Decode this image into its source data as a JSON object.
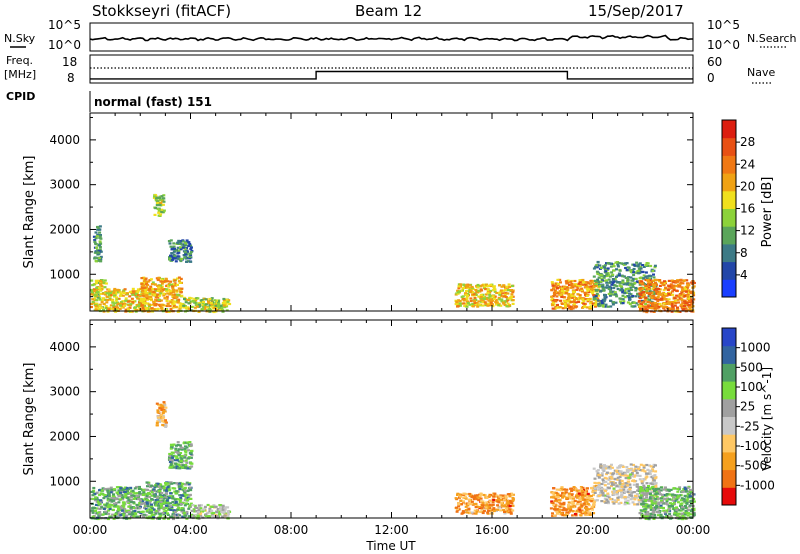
{
  "header": {
    "station": "Stokkseyri (fitACF)",
    "beam": "Beam 12",
    "date": "15/Sep/2017"
  },
  "panel_labels": {
    "nsky": "N.Sky",
    "nsearch": "N.Search",
    "freq": "Freq.",
    "freq_unit": "[MHz]",
    "nave": "Nave",
    "cpid": "CPID",
    "cpid_value": "normal (fast) 151"
  },
  "colors": {
    "power_scale": [
      "#1a3fff",
      "#2246a8",
      "#3c7a86",
      "#5aa55a",
      "#8cd23a",
      "#f0e01e",
      "#f0a214",
      "#f07814",
      "#e85014",
      "#dc1e10"
    ],
    "velocity_scale": [
      "#e60a0a",
      "#f07314",
      "#f5a01e",
      "#ffc864",
      "#c8c8c8",
      "#a0a0a0",
      "#78dc3c",
      "#50a064",
      "#3264a0",
      "#2846c8"
    ]
  },
  "chart_data": [
    {
      "type": "line",
      "panel": "noise",
      "series": [
        {
          "name": "N.Sky",
          "style": "solid"
        },
        {
          "name": "N.Search",
          "style": "dotted"
        }
      ],
      "left_ticks": [
        "10^5",
        "10^0"
      ],
      "right_ticks": [
        "10^5",
        "10^0"
      ]
    },
    {
      "type": "line",
      "panel": "frequency",
      "series": [
        {
          "name": "Freq. [MHz]",
          "style": "solid",
          "x": [
            0,
            9,
            9,
            19,
            19,
            24
          ],
          "y": [
            8.6,
            8.6,
            11.5,
            11.5,
            8.6,
            8.6
          ]
        },
        {
          "name": "Nave",
          "style": "dotted"
        }
      ],
      "left_ticks": [
        "18",
        "8"
      ],
      "right_ticks": [
        "60",
        "0"
      ]
    },
    {
      "type": "heatmap",
      "panel": "power",
      "ylabel": "Slant Range [km]",
      "yticks": [
        "1000",
        "2000",
        "3000",
        "4000"
      ],
      "ylim": [
        180,
        4600
      ],
      "colorbar_label": "Power [dB]",
      "colorbar_ticks": [
        "4",
        "8",
        "12",
        "16",
        "20",
        "24",
        "28"
      ],
      "regions": [
        {
          "t": [
            0.0,
            0.6
          ],
          "r": [
            180,
            900
          ],
          "level": 0.55
        },
        {
          "t": [
            0.6,
            2.2
          ],
          "r": [
            180,
            700
          ],
          "level": 0.6
        },
        {
          "t": [
            2.0,
            3.6
          ],
          "r": [
            180,
            950
          ],
          "level": 0.65
        },
        {
          "t": [
            3.6,
            5.5
          ],
          "r": [
            180,
            500
          ],
          "level": 0.5
        },
        {
          "t": [
            0.1,
            0.4
          ],
          "r": [
            1300,
            2100
          ],
          "level": 0.3
        },
        {
          "t": [
            2.5,
            2.9
          ],
          "r": [
            2300,
            2800
          ],
          "level": 0.45
        },
        {
          "t": [
            3.1,
            4.0
          ],
          "r": [
            1300,
            1800
          ],
          "level": 0.25
        },
        {
          "t": [
            14.5,
            16.8
          ],
          "r": [
            300,
            800
          ],
          "level": 0.6
        },
        {
          "t": [
            18.3,
            20.2
          ],
          "r": [
            250,
            900
          ],
          "level": 0.7
        },
        {
          "t": [
            20.0,
            22.5
          ],
          "r": [
            300,
            1300
          ],
          "level": 0.3
        },
        {
          "t": [
            21.8,
            24.0
          ],
          "r": [
            180,
            900
          ],
          "level": 0.75
        }
      ]
    },
    {
      "type": "heatmap",
      "panel": "velocity",
      "xlabel": "Time UT",
      "xticks": [
        "00:00",
        "04:00",
        "08:00",
        "12:00",
        "16:00",
        "20:00",
        "00:00"
      ],
      "xlim": [
        0,
        24
      ],
      "ylabel": "Slant Range [km]",
      "yticks": [
        "1000",
        "2000",
        "3000",
        "4000"
      ],
      "ylim": [
        180,
        4600
      ],
      "colorbar_label": "Velocity [m s^-1]",
      "colorbar_ticks": [
        "-1000",
        "-500",
        "-100",
        "-25",
        "25",
        "100",
        "500",
        "1000"
      ],
      "regions": [
        {
          "t": [
            0.0,
            2.2
          ],
          "r": [
            180,
            900
          ],
          "level": 0.68
        },
        {
          "t": [
            2.2,
            4.0
          ],
          "r": [
            180,
            1000
          ],
          "level": 0.72
        },
        {
          "t": [
            4.0,
            5.5
          ],
          "r": [
            180,
            500
          ],
          "level": 0.55
        },
        {
          "t": [
            2.6,
            3.0
          ],
          "r": [
            2200,
            2800
          ],
          "level": 0.3
        },
        {
          "t": [
            3.1,
            4.0
          ],
          "r": [
            1300,
            1900
          ],
          "level": 0.7
        },
        {
          "t": [
            14.5,
            16.8
          ],
          "r": [
            300,
            750
          ],
          "level": 0.22
        },
        {
          "t": [
            18.3,
            20.0
          ],
          "r": [
            250,
            900
          ],
          "level": 0.22
        },
        {
          "t": [
            20.0,
            22.5
          ],
          "r": [
            500,
            1400
          ],
          "level": 0.45
        },
        {
          "t": [
            21.8,
            24.0
          ],
          "r": [
            180,
            900
          ],
          "level": 0.68
        }
      ]
    }
  ]
}
